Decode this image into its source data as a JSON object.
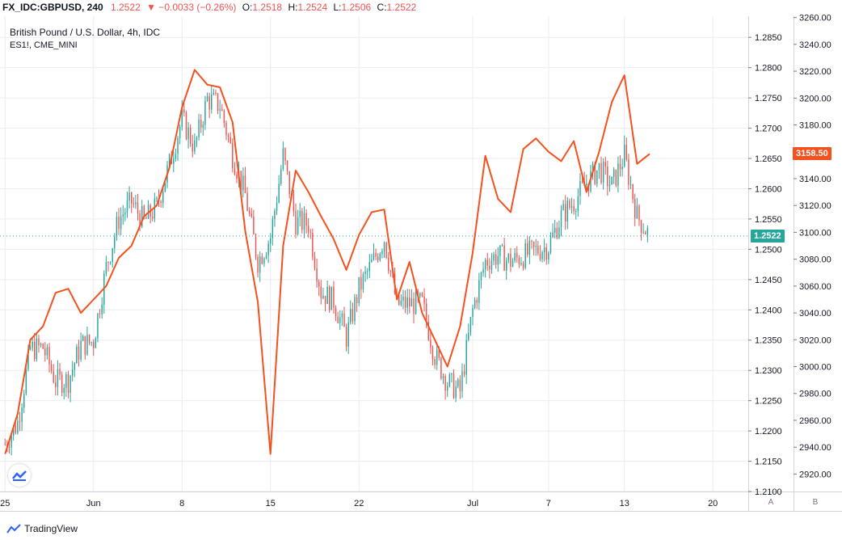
{
  "header": {
    "symbol": "FX_IDC:GBPUSD, 240",
    "last": "1.2522",
    "change": "▼ −0.0033 (−0.26%)",
    "o_label": "O:",
    "o_value": "1.2518",
    "h_label": "H:",
    "h_value": "1.2524",
    "l_label": "L:",
    "l_value": "1.2506",
    "c_label": "C:",
    "c_value": "1.2522"
  },
  "legend": {
    "title": "British Pound / U.S. Dollar, 4h, IDC",
    "overlay": "ES1!, CME_MINI"
  },
  "badges": {
    "overlay_last": "3158.50",
    "price_last": "1.2522"
  },
  "axis_buttons": {
    "a": "A",
    "b": "B"
  },
  "brand": {
    "name": "TradingView"
  },
  "colors": {
    "up": "#26a69a",
    "down": "#ef5350",
    "overlay": "#f4511e",
    "grid": "#e9ecf1",
    "text": "#131722"
  },
  "chart_data": {
    "type": "candlestick+line",
    "title": "British Pound / U.S. Dollar, 4h, IDC",
    "price_axis": {
      "ticks": [
        "1.2100",
        "1.2150",
        "1.2200",
        "1.2250",
        "1.2300",
        "1.2350",
        "1.2400",
        "1.2450",
        "1.2500",
        "1.2550",
        "1.2600",
        "1.2650",
        "1.2700",
        "1.2750",
        "1.2800",
        "1.2850"
      ],
      "range": [
        1.21,
        1.2885
      ]
    },
    "overlay_axis": {
      "ticks": [
        "2920.00",
        "2940.00",
        "2960.00",
        "2980.00",
        "3000.00",
        "3020.00",
        "3040.00",
        "3060.00",
        "3080.00",
        "3100.00",
        "3120.00",
        "3140.00",
        "3160.00",
        "3180.00",
        "3200.00",
        "3220.00",
        "3240.00",
        "3260.00"
      ],
      "range": [
        2907,
        3261
      ]
    },
    "x_axis": {
      "ticks": [
        {
          "label": "25",
          "day": 0
        },
        {
          "label": "Jun",
          "day": 7
        },
        {
          "label": "8",
          "day": 14
        },
        {
          "label": "15",
          "day": 21
        },
        {
          "label": "22",
          "day": 28
        },
        {
          "label": "Jul",
          "day": 37
        },
        {
          "label": "7",
          "day": 43
        },
        {
          "label": "13",
          "day": 49
        },
        {
          "label": "20",
          "day": 56
        }
      ],
      "range_days": [
        -0.4,
        58.8
      ]
    },
    "gbpusd_close": [
      {
        "day": 0,
        "close": 1.2178
      },
      {
        "day": 1,
        "close": 1.2214
      },
      {
        "day": 2,
        "close": 1.2335
      },
      {
        "day": 3,
        "close": 1.2338
      },
      {
        "day": 4,
        "close": 1.2282
      },
      {
        "day": 5,
        "close": 1.2284
      },
      {
        "day": 6,
        "close": 1.2342
      },
      {
        "day": 7,
        "close": 1.2348
      },
      {
        "day": 8,
        "close": 1.247
      },
      {
        "day": 9,
        "close": 1.255
      },
      {
        "day": 10,
        "close": 1.2578
      },
      {
        "day": 11,
        "close": 1.2545
      },
      {
        "day": 12,
        "close": 1.2571
      },
      {
        "day": 13,
        "close": 1.264
      },
      {
        "day": 14,
        "close": 1.2715
      },
      {
        "day": 15,
        "close": 1.2668
      },
      {
        "day": 16,
        "close": 1.2748
      },
      {
        "day": 17,
        "close": 1.2738
      },
      {
        "day": 18,
        "close": 1.2655
      },
      {
        "day": 19,
        "close": 1.259
      },
      {
        "day": 20,
        "close": 1.248
      },
      {
        "day": 21,
        "close": 1.252
      },
      {
        "day": 22,
        "close": 1.2655
      },
      {
        "day": 23,
        "close": 1.2545
      },
      {
        "day": 24,
        "close": 1.2542
      },
      {
        "day": 25,
        "close": 1.243
      },
      {
        "day": 26,
        "close": 1.2415
      },
      {
        "day": 27,
        "close": 1.2355
      },
      {
        "day": 28,
        "close": 1.2435
      },
      {
        "day": 29,
        "close": 1.2475
      },
      {
        "day": 30,
        "close": 1.2518
      },
      {
        "day": 31,
        "close": 1.2409
      },
      {
        "day": 32,
        "close": 1.241
      },
      {
        "day": 33,
        "close": 1.241
      },
      {
        "day": 34,
        "close": 1.2325
      },
      {
        "day": 35,
        "close": 1.228
      },
      {
        "day": 36,
        "close": 1.2265
      },
      {
        "day": 37,
        "close": 1.24
      },
      {
        "day": 38,
        "close": 1.248
      },
      {
        "day": 39,
        "close": 1.249
      },
      {
        "day": 40,
        "close": 1.248
      },
      {
        "day": 41,
        "close": 1.2489
      },
      {
        "day": 42,
        "close": 1.2498
      },
      {
        "day": 43,
        "close": 1.2505
      },
      {
        "day": 44,
        "close": 1.2555
      },
      {
        "day": 45,
        "close": 1.2578
      },
      {
        "day": 46,
        "close": 1.261
      },
      {
        "day": 47,
        "close": 1.2634
      },
      {
        "day": 48,
        "close": 1.2605
      },
      {
        "day": 49,
        "close": 1.2655
      },
      {
        "day": 50,
        "close": 1.2555
      },
      {
        "day": 51,
        "close": 1.2522
      }
    ],
    "es1_line": [
      {
        "day": 0,
        "value": 2935
      },
      {
        "day": 1,
        "value": 2965
      },
      {
        "day": 2,
        "value": 3020
      },
      {
        "day": 3,
        "value": 3030
      },
      {
        "day": 4,
        "value": 3055
      },
      {
        "day": 5,
        "value": 3058
      },
      {
        "day": 6,
        "value": 3040
      },
      {
        "day": 7,
        "value": 3050
      },
      {
        "day": 8,
        "value": 3060
      },
      {
        "day": 9,
        "value": 3081
      },
      {
        "day": 10,
        "value": 3090
      },
      {
        "day": 11,
        "value": 3112
      },
      {
        "day": 12,
        "value": 3120
      },
      {
        "day": 13,
        "value": 3148
      },
      {
        "day": 14,
        "value": 3193
      },
      {
        "day": 15,
        "value": 3221
      },
      {
        "day": 16,
        "value": 3210
      },
      {
        "day": 17,
        "value": 3208
      },
      {
        "day": 18,
        "value": 3182
      },
      {
        "day": 19,
        "value": 3101
      },
      {
        "day": 20,
        "value": 3048
      },
      {
        "day": 21,
        "value": 2935
      },
      {
        "day": 22,
        "value": 3090
      },
      {
        "day": 23,
        "value": 3146
      },
      {
        "day": 24,
        "value": 3130
      },
      {
        "day": 25,
        "value": 3112
      },
      {
        "day": 26,
        "value": 3095
      },
      {
        "day": 27,
        "value": 3072
      },
      {
        "day": 28,
        "value": 3098
      },
      {
        "day": 29,
        "value": 3115
      },
      {
        "day": 30,
        "value": 3117
      },
      {
        "day": 31,
        "value": 3050
      },
      {
        "day": 32,
        "value": 3078
      },
      {
        "day": 33,
        "value": 3040
      },
      {
        "day": 34,
        "value": 3020
      },
      {
        "day": 35,
        "value": 3000
      },
      {
        "day": 36,
        "value": 3030
      },
      {
        "day": 37,
        "value": 3085
      },
      {
        "day": 38,
        "value": 3157
      },
      {
        "day": 39,
        "value": 3125
      },
      {
        "day": 40,
        "value": 3115
      },
      {
        "day": 41,
        "value": 3162
      },
      {
        "day": 42,
        "value": 3170
      },
      {
        "day": 43,
        "value": 3160
      },
      {
        "day": 44,
        "value": 3153
      },
      {
        "day": 45,
        "value": 3168
      },
      {
        "day": 46,
        "value": 3130
      },
      {
        "day": 47,
        "value": 3160
      },
      {
        "day": 48,
        "value": 3197
      },
      {
        "day": 49,
        "value": 3217
      },
      {
        "day": 50,
        "value": 3151
      },
      {
        "day": 51,
        "value": 3158.5
      }
    ]
  }
}
